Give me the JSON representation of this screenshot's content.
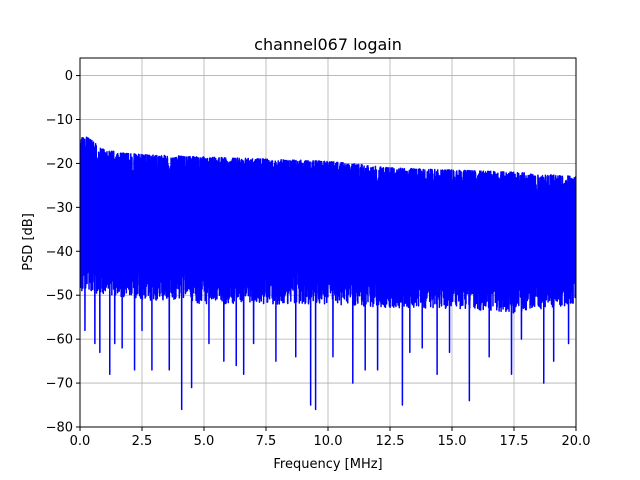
{
  "chart_data": {
    "type": "line",
    "title": "channel067 logain",
    "xlabel": "Frequency [MHz]",
    "ylabel": "PSD [dB]",
    "xlim": [
      0.0,
      20.0
    ],
    "ylim": [
      -80,
      4
    ],
    "x_ticks": [
      0.0,
      2.5,
      5.0,
      7.5,
      10.0,
      12.5,
      15.0,
      17.5,
      20.0
    ],
    "x_tick_labels": [
      "0.0",
      "2.5",
      "5.0",
      "7.5",
      "10.0",
      "12.5",
      "15.0",
      "17.5",
      "20.0"
    ],
    "y_ticks": [
      0,
      -10,
      -20,
      -30,
      -40,
      -50,
      -60,
      -70,
      -80
    ],
    "y_tick_labels": [
      "0",
      "−10",
      "−20",
      "−30",
      "−40",
      "−50",
      "−60",
      "−70",
      "−80"
    ],
    "grid": true,
    "series": [
      {
        "color": "#0000ff",
        "envelope_upper": {
          "x": [
            0.0,
            0.3,
            1.0,
            2.5,
            5.0,
            7.5,
            10.0,
            12.5,
            15.0,
            17.5,
            20.0
          ],
          "y": [
            -14,
            -14,
            -17,
            -18,
            -18.5,
            -19,
            -19.5,
            -21,
            -21.5,
            -22,
            -23
          ]
        },
        "envelope_lower": {
          "x": [
            0.0,
            2.5,
            5.0,
            7.5,
            10.0,
            12.5,
            15.0,
            17.5,
            20.0
          ],
          "y": [
            -47,
            -49,
            -50,
            -50,
            -50,
            -51,
            -51,
            -52,
            -50
          ]
        },
        "deep_dips": [
          {
            "x": 0.2,
            "y": -58
          },
          {
            "x": 0.6,
            "y": -61
          },
          {
            "x": 0.8,
            "y": -63
          },
          {
            "x": 1.2,
            "y": -68
          },
          {
            "x": 1.4,
            "y": -61
          },
          {
            "x": 1.7,
            "y": -62
          },
          {
            "x": 2.2,
            "y": -67
          },
          {
            "x": 2.5,
            "y": -58
          },
          {
            "x": 2.9,
            "y": -67
          },
          {
            "x": 3.6,
            "y": -67
          },
          {
            "x": 4.1,
            "y": -76
          },
          {
            "x": 4.5,
            "y": -71
          },
          {
            "x": 5.2,
            "y": -61
          },
          {
            "x": 5.8,
            "y": -65
          },
          {
            "x": 6.3,
            "y": -66
          },
          {
            "x": 6.6,
            "y": -68
          },
          {
            "x": 7.0,
            "y": -61
          },
          {
            "x": 7.9,
            "y": -65
          },
          {
            "x": 8.7,
            "y": -64
          },
          {
            "x": 9.3,
            "y": -75
          },
          {
            "x": 9.5,
            "y": -76
          },
          {
            "x": 10.2,
            "y": -64
          },
          {
            "x": 11.0,
            "y": -70
          },
          {
            "x": 11.5,
            "y": -67
          },
          {
            "x": 12.0,
            "y": -67
          },
          {
            "x": 13.0,
            "y": -75
          },
          {
            "x": 13.3,
            "y": -63
          },
          {
            "x": 13.8,
            "y": -62
          },
          {
            "x": 14.4,
            "y": -68
          },
          {
            "x": 14.9,
            "y": -63
          },
          {
            "x": 15.7,
            "y": -74
          },
          {
            "x": 16.5,
            "y": -64
          },
          {
            "x": 17.4,
            "y": -68
          },
          {
            "x": 17.8,
            "y": -60
          },
          {
            "x": 18.7,
            "y": -70
          },
          {
            "x": 19.1,
            "y": -65
          },
          {
            "x": 19.7,
            "y": -61
          }
        ]
      }
    ]
  }
}
